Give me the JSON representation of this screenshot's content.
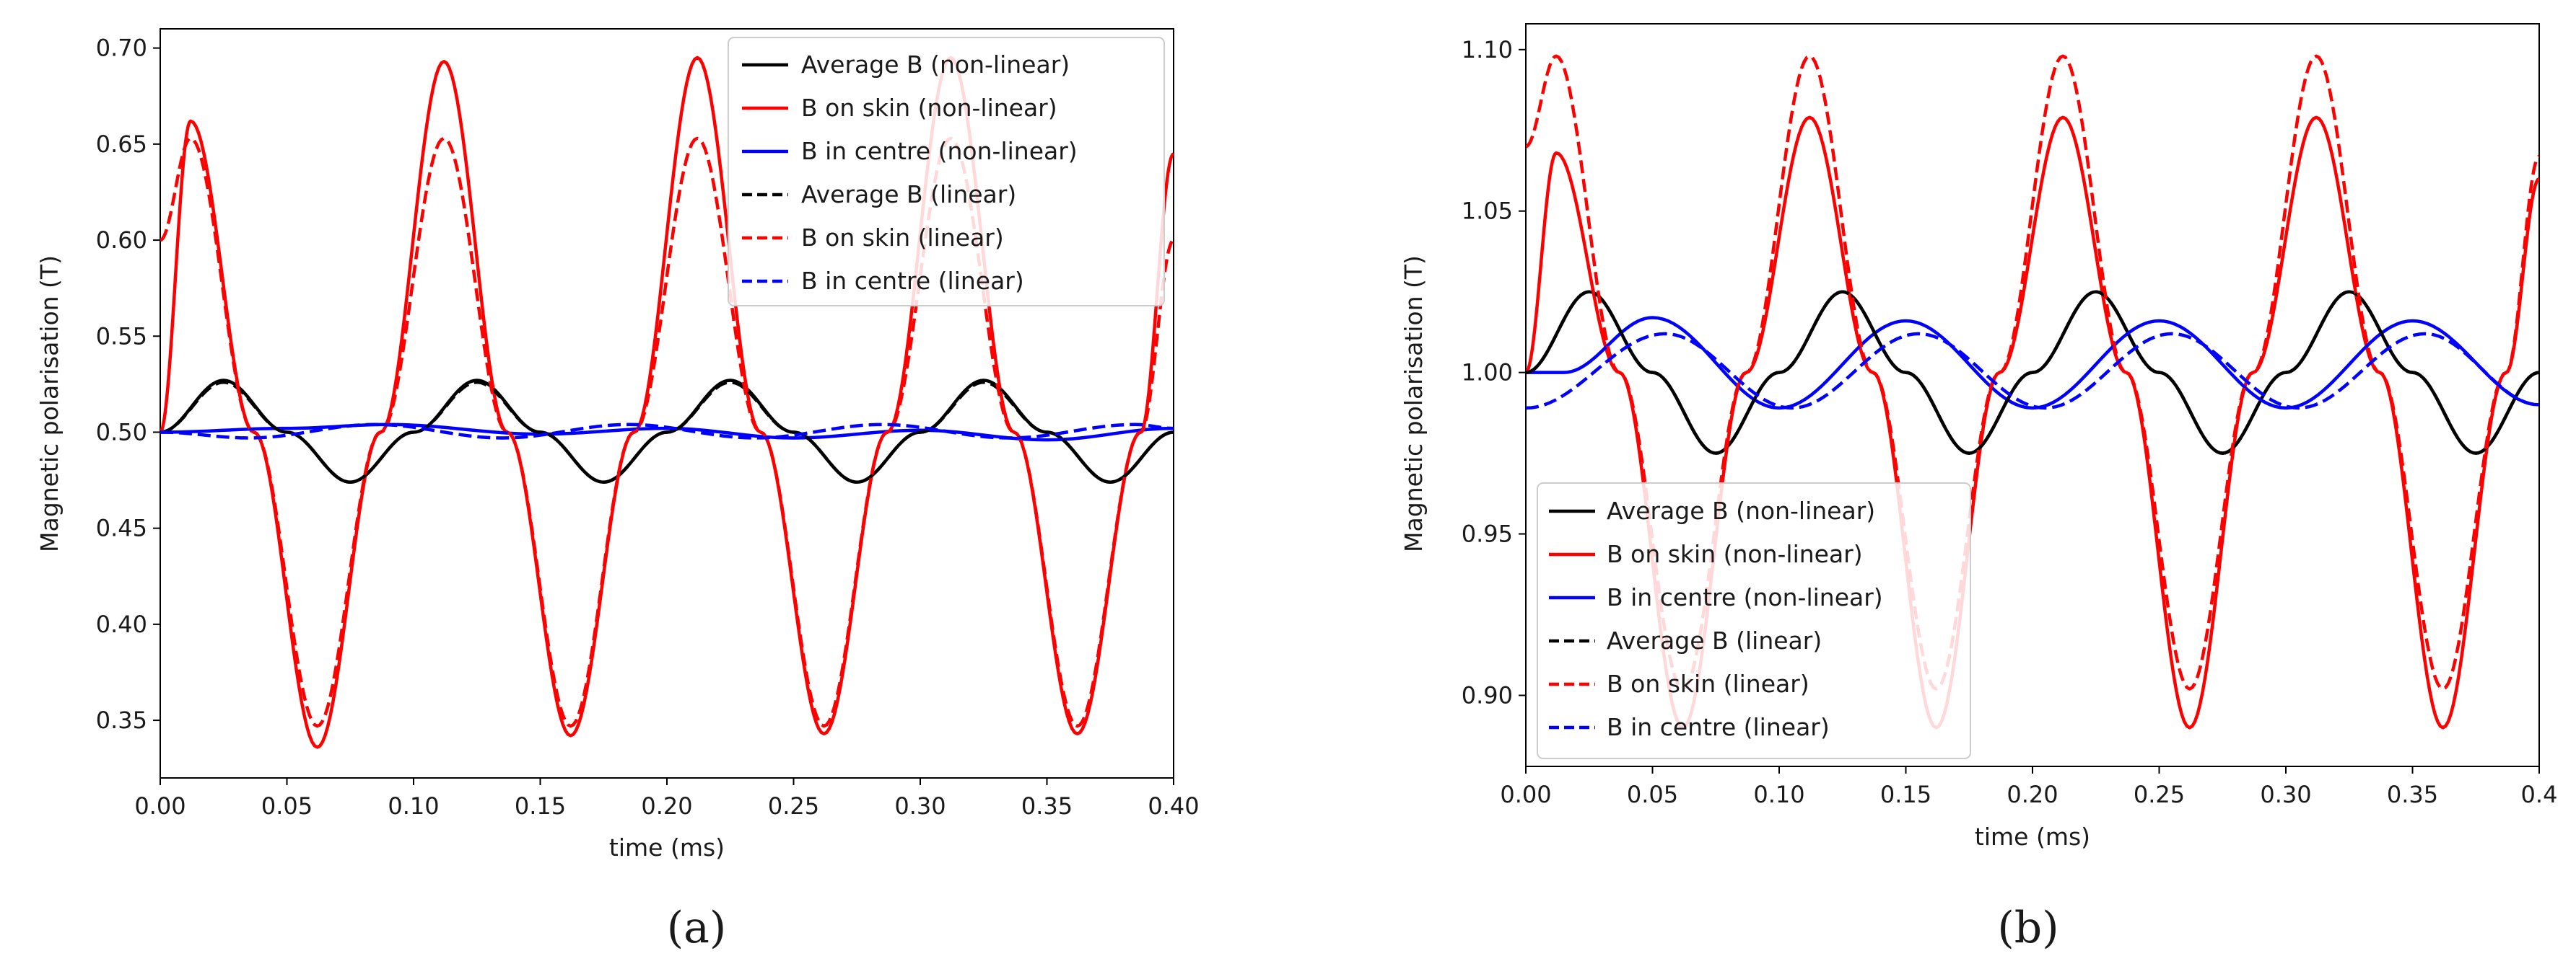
{
  "colors": {
    "black": "#000000",
    "red": "#ff0000",
    "blue": "#0000ff"
  },
  "chart_data": [
    {
      "type": "line",
      "panel_label": "(a)",
      "xlabel": "time (ms)",
      "ylabel": "Magnetic polarisation (T)",
      "xlim": [
        0.0,
        0.4
      ],
      "ylim": [
        0.32,
        0.71
      ],
      "xticks": [
        "0.00",
        "0.05",
        "0.10",
        "0.15",
        "0.20",
        "0.25",
        "0.30",
        "0.35",
        "0.40"
      ],
      "yticks": [
        "0.35",
        "0.40",
        "0.45",
        "0.50",
        "0.55",
        "0.60",
        "0.65",
        "0.70"
      ],
      "legend_position": "top-right",
      "period_ms": 0.1,
      "series": [
        {
          "name": "Average B (non-linear)",
          "color": "black",
          "style": "solid",
          "values": {
            "x": [
              0.0,
              0.025,
              0.05,
              0.075,
              0.1,
              0.125,
              0.15,
              0.175,
              0.2,
              0.225,
              0.25,
              0.275,
              0.3,
              0.325,
              0.35,
              0.375,
              0.4
            ],
            "y": [
              0.5,
              0.527,
              0.5,
              0.474,
              0.5,
              0.527,
              0.5,
              0.474,
              0.5,
              0.527,
              0.5,
              0.474,
              0.5,
              0.527,
              0.5,
              0.474,
              0.5
            ]
          }
        },
        {
          "name": "B on skin (non-linear)",
          "color": "red",
          "style": "solid",
          "values": {
            "x": [
              0.0,
              0.012,
              0.037,
              0.062,
              0.087,
              0.112,
              0.137,
              0.162,
              0.187,
              0.212,
              0.237,
              0.262,
              0.287,
              0.312,
              0.337,
              0.362,
              0.387,
              0.4
            ],
            "y": [
              0.5,
              0.662,
              0.5,
              0.336,
              0.5,
              0.693,
              0.5,
              0.342,
              0.5,
              0.695,
              0.5,
              0.343,
              0.5,
              0.695,
              0.5,
              0.343,
              0.5,
              0.645
            ]
          }
        },
        {
          "name": "B in centre (non-linear)",
          "color": "blue",
          "style": "solid",
          "values": {
            "x": [
              0.0,
              0.05,
              0.09,
              0.15,
              0.2,
              0.25,
              0.3,
              0.35,
              0.4
            ],
            "y": [
              0.5,
              0.502,
              0.504,
              0.499,
              0.502,
              0.497,
              0.501,
              0.496,
              0.502
            ]
          }
        },
        {
          "name": "Average B (linear)",
          "color": "black",
          "style": "dashed",
          "values": {
            "x": [
              0.0,
              0.025,
              0.05,
              0.075,
              0.1,
              0.125,
              0.15,
              0.175,
              0.2,
              0.225,
              0.25,
              0.275,
              0.3,
              0.325,
              0.35,
              0.375,
              0.4
            ],
            "y": [
              0.5,
              0.526,
              0.5,
              0.474,
              0.5,
              0.526,
              0.5,
              0.474,
              0.5,
              0.526,
              0.5,
              0.474,
              0.5,
              0.526,
              0.5,
              0.474,
              0.5
            ]
          }
        },
        {
          "name": "B on skin (linear)",
          "color": "red",
          "style": "dashed",
          "values": {
            "x": [
              0.0,
              0.012,
              0.037,
              0.062,
              0.087,
              0.112,
              0.137,
              0.162,
              0.187,
              0.212,
              0.237,
              0.262,
              0.287,
              0.312,
              0.337,
              0.362,
              0.387,
              0.4
            ],
            "y": [
              0.6,
              0.653,
              0.5,
              0.347,
              0.5,
              0.653,
              0.5,
              0.347,
              0.5,
              0.653,
              0.5,
              0.347,
              0.5,
              0.653,
              0.5,
              0.347,
              0.5,
              0.6
            ]
          }
        },
        {
          "name": "B in centre (linear)",
          "color": "blue",
          "style": "dashed",
          "values": {
            "x": [
              0.0,
              0.035,
              0.085,
              0.135,
              0.185,
              0.235,
              0.285,
              0.335,
              0.385,
              0.4
            ],
            "y": [
              0.5,
              0.497,
              0.504,
              0.497,
              0.504,
              0.497,
              0.504,
              0.497,
              0.504,
              0.502
            ]
          }
        }
      ]
    },
    {
      "type": "line",
      "panel_label": "(b)",
      "xlabel": "time (ms)",
      "ylabel": "Magnetic polarisation (T)",
      "xlim": [
        0.0,
        0.4
      ],
      "ylim": [
        0.878,
        1.108
      ],
      "xticks": [
        "0.00",
        "0.05",
        "0.10",
        "0.15",
        "0.20",
        "0.25",
        "0.30",
        "0.35",
        "0.4"
      ],
      "yticks": [
        "0.90",
        "0.95",
        "1.00",
        "1.05",
        "1.10"
      ],
      "legend_position": "bottom-left",
      "period_ms": 0.1,
      "series": [
        {
          "name": "Average B (non-linear)",
          "color": "black",
          "style": "solid",
          "values": {
            "x": [
              0.0,
              0.025,
              0.05,
              0.075,
              0.1,
              0.125,
              0.15,
              0.175,
              0.2,
              0.225,
              0.25,
              0.275,
              0.3,
              0.325,
              0.35,
              0.375,
              0.4
            ],
            "y": [
              1.0,
              1.025,
              1.0,
              0.975,
              1.0,
              1.025,
              1.0,
              0.975,
              1.0,
              1.025,
              1.0,
              0.975,
              1.0,
              1.025,
              1.0,
              0.975,
              1.0
            ]
          }
        },
        {
          "name": "B on skin (non-linear)",
          "color": "red",
          "style": "solid",
          "values": {
            "x": [
              0.0,
              0.012,
              0.037,
              0.062,
              0.087,
              0.112,
              0.137,
              0.162,
              0.187,
              0.212,
              0.237,
              0.262,
              0.287,
              0.312,
              0.337,
              0.362,
              0.387,
              0.4
            ],
            "y": [
              1.0,
              1.068,
              1.0,
              0.89,
              1.0,
              1.079,
              1.0,
              0.89,
              1.0,
              1.079,
              1.0,
              0.89,
              1.0,
              1.079,
              1.0,
              0.89,
              1.0,
              1.06
            ]
          }
        },
        {
          "name": "B in centre (non-linear)",
          "color": "blue",
          "style": "solid",
          "values": {
            "x": [
              0.0,
              0.015,
              0.05,
              0.1,
              0.15,
              0.2,
              0.25,
              0.3,
              0.35,
              0.4
            ],
            "y": [
              1.0,
              1.0,
              1.017,
              0.989,
              1.016,
              0.989,
              1.016,
              0.989,
              1.016,
              0.99
            ]
          }
        },
        {
          "name": "Average B (linear)",
          "color": "black",
          "style": "dashed",
          "values": {
            "x": [
              0.0,
              0.025,
              0.05,
              0.075,
              0.1,
              0.125,
              0.15,
              0.175,
              0.2,
              0.225,
              0.25,
              0.275,
              0.3,
              0.325,
              0.35,
              0.375,
              0.4
            ],
            "y": [
              1.0,
              1.025,
              1.0,
              0.975,
              1.0,
              1.025,
              1.0,
              0.975,
              1.0,
              1.025,
              1.0,
              0.975,
              1.0,
              1.025,
              1.0,
              0.975,
              1.0
            ]
          }
        },
        {
          "name": "B on skin (linear)",
          "color": "red",
          "style": "dashed",
          "values": {
            "x": [
              0.0,
              0.012,
              0.037,
              0.062,
              0.087,
              0.112,
              0.137,
              0.162,
              0.187,
              0.212,
              0.237,
              0.262,
              0.287,
              0.312,
              0.337,
              0.362,
              0.387,
              0.4
            ],
            "y": [
              1.07,
              1.098,
              1.0,
              0.902,
              1.0,
              1.098,
              1.0,
              0.902,
              1.0,
              1.098,
              1.0,
              0.902,
              1.0,
              1.098,
              1.0,
              0.902,
              1.0,
              1.067
            ]
          }
        },
        {
          "name": "B in centre (linear)",
          "color": "blue",
          "style": "dashed",
          "values": {
            "x": [
              0.0,
              0.055,
              0.105,
              0.155,
              0.205,
              0.255,
              0.305,
              0.355,
              0.4
            ],
            "y": [
              0.989,
              1.012,
              0.989,
              1.012,
              0.989,
              1.012,
              0.989,
              1.012,
              0.99
            ]
          }
        }
      ]
    }
  ]
}
